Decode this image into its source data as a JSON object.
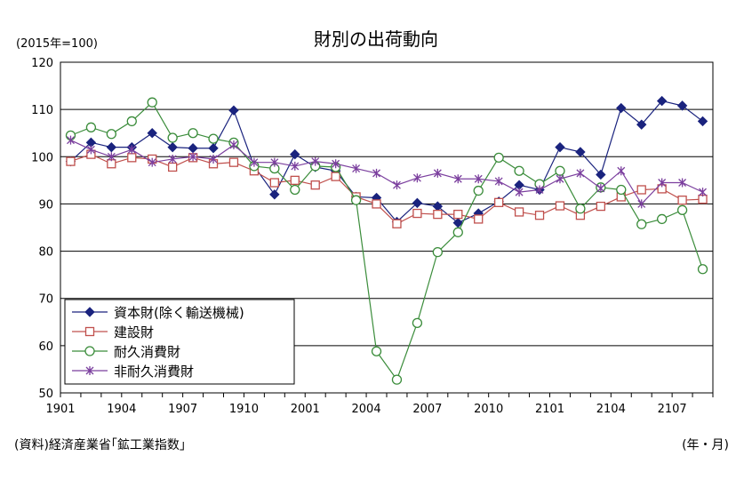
{
  "chart_data": {
    "type": "line",
    "title": "財別の出荷動向",
    "unit_label": "(2015年=100)",
    "source": "(資料)経済産業省｢鉱工業指数｣",
    "x_unit_label": "(年・月)",
    "ylim": [
      50,
      120
    ],
    "y_ticks": [
      "50",
      "60",
      "70",
      "80",
      "90",
      "100",
      "110",
      "120"
    ],
    "x_categories": [
      "1901",
      "1902",
      "1903",
      "1904",
      "1905",
      "1906",
      "1907",
      "1908",
      "1909",
      "1910",
      "1911",
      "1912",
      "2001",
      "2002",
      "2003",
      "2004",
      "2005",
      "2006",
      "2007",
      "2008",
      "2009",
      "2010",
      "2011",
      "2012",
      "2101",
      "2102",
      "2103",
      "2104",
      "2105",
      "2106",
      "2107",
      "2108"
    ],
    "x_tick_labels": [
      "1901",
      "1904",
      "1907",
      "1910",
      "2001",
      "2004",
      "2007",
      "2010",
      "2101",
      "2104",
      "2107"
    ],
    "grid": true,
    "legend_position": "lower-left",
    "series": [
      {
        "name": "資本財(除く輸送機械)",
        "color": "#1a237e",
        "marker": "diamond",
        "values": [
          99.0,
          103.0,
          102.0,
          102.0,
          105.0,
          102.0,
          101.8,
          101.8,
          109.8,
          98.0,
          92.0,
          100.5,
          97.8,
          97.0,
          91.5,
          91.3,
          86.2,
          90.2,
          89.5,
          86.0,
          88.0,
          90.5,
          94.0,
          93.0,
          102.0,
          101.0,
          96.2,
          110.3,
          106.8,
          111.8,
          110.8,
          107.5
        ]
      },
      {
        "name": "建設財",
        "color": "#c0504d",
        "marker": "square",
        "values": [
          99.0,
          100.5,
          98.5,
          99.8,
          99.5,
          97.8,
          99.8,
          98.5,
          98.8,
          97.0,
          94.5,
          95.0,
          94.0,
          95.8,
          91.5,
          90.0,
          85.8,
          88.0,
          87.8,
          87.8,
          86.8,
          90.3,
          88.3,
          87.6,
          89.6,
          87.6,
          89.5,
          91.5,
          93.0,
          93.2,
          90.8,
          91.0
        ]
      },
      {
        "name": "耐久消費財",
        "color": "#3a8c3a",
        "marker": "circle",
        "values": [
          104.5,
          106.2,
          104.8,
          107.5,
          111.5,
          104.0,
          105.0,
          103.8,
          103.0,
          98.0,
          97.5,
          93.0,
          98.0,
          97.8,
          90.8,
          58.8,
          52.8,
          64.8,
          79.8,
          84.0,
          92.8,
          99.8,
          97.0,
          94.2,
          97.0,
          89.0,
          93.5,
          93.0,
          85.7,
          86.8,
          88.7,
          76.2
        ]
      },
      {
        "name": "非耐久消費財",
        "color": "#7b3f9e",
        "marker": "star",
        "values": [
          103.5,
          101.5,
          100.0,
          101.5,
          98.8,
          99.5,
          100.0,
          99.5,
          102.5,
          98.8,
          98.8,
          98.0,
          99.0,
          98.5,
          97.5,
          96.5,
          94.0,
          95.5,
          96.5,
          95.3,
          95.3,
          94.8,
          92.5,
          93.0,
          95.3,
          96.5,
          93.3,
          97.0,
          90.0,
          94.5,
          94.5,
          92.5
        ]
      }
    ]
  }
}
